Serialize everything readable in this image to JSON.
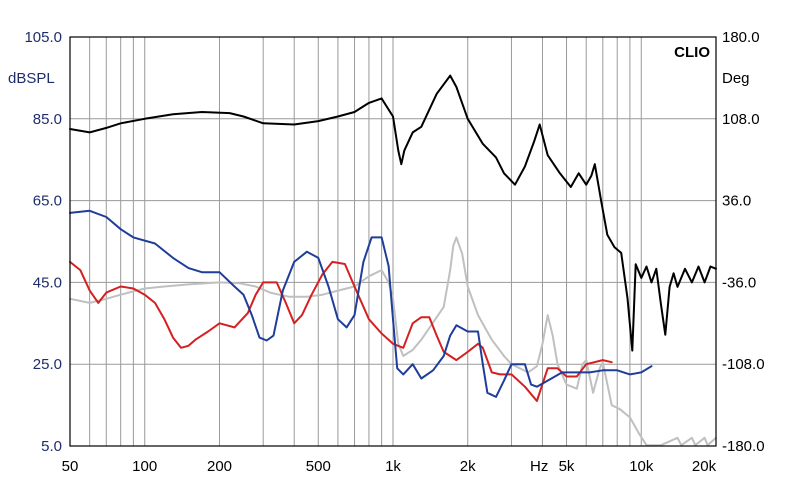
{
  "chart_data": {
    "type": "line",
    "brand": "CLIO",
    "x_scale": "log",
    "xlim": [
      50,
      20000
    ],
    "x_ticks": [
      50,
      100,
      200,
      500,
      1000,
      2000,
      5000,
      10000,
      20000
    ],
    "x_tick_labels": [
      "50",
      "100",
      "200",
      "500",
      "1k",
      "2k",
      "5k",
      "10k",
      "20k"
    ],
    "x_unit": "Hz",
    "y_left": {
      "unit": "dBSPL",
      "lim": [
        5,
        105
      ],
      "ticks": [
        5,
        25,
        45,
        65,
        85,
        105
      ],
      "tick_labels": [
        "5.0",
        "25.0",
        "45.0",
        "65.0",
        "85.0",
        "105.0"
      ]
    },
    "y_right": {
      "unit": "Deg",
      "lim": [
        -180,
        180
      ],
      "ticks": [
        -180,
        -108,
        -36,
        36,
        108,
        180
      ],
      "tick_labels": [
        "-180.0",
        "-108.0",
        "-36.0",
        "36.0",
        "108.0",
        "180.0"
      ]
    },
    "grid": true,
    "colors": {
      "axis_text_left": "#1f2d6b",
      "grid": "#9a9a9a",
      "frame": "#000000"
    },
    "series": [
      {
        "axis": "left",
        "color": "#1f3d99",
        "points": [
          [
            50,
            62
          ],
          [
            60,
            62.5
          ],
          [
            70,
            61
          ],
          [
            80,
            58
          ],
          [
            90,
            56
          ],
          [
            110,
            54.5
          ],
          [
            130,
            51
          ],
          [
            150,
            48.5
          ],
          [
            170,
            47.5
          ],
          [
            200,
            47.5
          ],
          [
            230,
            44
          ],
          [
            250,
            42
          ],
          [
            270,
            37
          ],
          [
            290,
            31.5
          ],
          [
            310,
            30.8
          ],
          [
            330,
            32
          ],
          [
            360,
            43
          ],
          [
            400,
            50
          ],
          [
            450,
            52.5
          ],
          [
            500,
            51
          ],
          [
            550,
            44
          ],
          [
            600,
            36
          ],
          [
            650,
            34
          ],
          [
            700,
            37
          ],
          [
            760,
            50
          ],
          [
            820,
            56
          ],
          [
            900,
            56
          ],
          [
            960,
            49
          ],
          [
            1000,
            36
          ],
          [
            1040,
            24
          ],
          [
            1100,
            22.5
          ],
          [
            1200,
            25
          ],
          [
            1300,
            21.5
          ],
          [
            1450,
            23.5
          ],
          [
            1600,
            27
          ],
          [
            1700,
            32
          ],
          [
            1800,
            34.5
          ],
          [
            2000,
            33
          ],
          [
            2200,
            33
          ],
          [
            2300,
            25
          ],
          [
            2400,
            18
          ],
          [
            2600,
            17
          ],
          [
            2800,
            21
          ],
          [
            3000,
            25
          ],
          [
            3400,
            25
          ],
          [
            3600,
            20
          ],
          [
            3800,
            19.5
          ],
          [
            4200,
            21
          ],
          [
            4800,
            23
          ],
          [
            5500,
            23
          ],
          [
            6200,
            23
          ],
          [
            7000,
            23.5
          ],
          [
            8000,
            23.5
          ],
          [
            9000,
            22.5
          ],
          [
            10000,
            23
          ],
          [
            11000,
            24.5
          ]
        ]
      },
      {
        "axis": "left",
        "color": "#d42020",
        "points": [
          [
            50,
            50
          ],
          [
            55,
            48
          ],
          [
            60,
            43
          ],
          [
            65,
            40
          ],
          [
            70,
            42.5
          ],
          [
            80,
            44
          ],
          [
            90,
            43.5
          ],
          [
            100,
            42
          ],
          [
            110,
            40
          ],
          [
            120,
            36
          ],
          [
            130,
            31.5
          ],
          [
            140,
            29
          ],
          [
            150,
            29.5
          ],
          [
            160,
            31
          ],
          [
            180,
            33
          ],
          [
            200,
            35
          ],
          [
            230,
            34
          ],
          [
            260,
            37.5
          ],
          [
            280,
            42
          ],
          [
            300,
            45
          ],
          [
            340,
            45
          ],
          [
            370,
            40
          ],
          [
            400,
            35
          ],
          [
            430,
            37
          ],
          [
            470,
            42
          ],
          [
            520,
            47
          ],
          [
            570,
            50
          ],
          [
            640,
            49.5
          ],
          [
            700,
            44
          ],
          [
            800,
            36
          ],
          [
            900,
            32.5
          ],
          [
            1000,
            30
          ],
          [
            1100,
            29
          ],
          [
            1200,
            35
          ],
          [
            1300,
            36.5
          ],
          [
            1400,
            36.5
          ],
          [
            1500,
            32
          ],
          [
            1600,
            28
          ],
          [
            1800,
            26
          ],
          [
            2000,
            28
          ],
          [
            2200,
            30
          ],
          [
            2300,
            29
          ],
          [
            2500,
            23
          ],
          [
            2700,
            22.5
          ],
          [
            3000,
            22.5
          ],
          [
            3400,
            19.5
          ],
          [
            3800,
            16
          ],
          [
            4200,
            24
          ],
          [
            4600,
            24
          ],
          [
            5000,
            22
          ],
          [
            5500,
            22
          ],
          [
            6000,
            25
          ],
          [
            7000,
            26
          ],
          [
            7600,
            25.5
          ]
        ]
      },
      {
        "axis": "left",
        "color": "#c0c0c0",
        "points": [
          [
            50,
            41
          ],
          [
            60,
            40
          ],
          [
            70,
            41
          ],
          [
            80,
            42
          ],
          [
            100,
            43.5
          ],
          [
            120,
            44
          ],
          [
            150,
            44.5
          ],
          [
            200,
            45
          ],
          [
            240,
            44.8
          ],
          [
            280,
            44
          ],
          [
            320,
            42.5
          ],
          [
            380,
            41.5
          ],
          [
            450,
            41.5
          ],
          [
            520,
            42
          ],
          [
            600,
            43
          ],
          [
            700,
            44
          ],
          [
            800,
            46.5
          ],
          [
            900,
            48
          ],
          [
            960,
            45
          ],
          [
            1000,
            41
          ],
          [
            1050,
            30
          ],
          [
            1100,
            27
          ],
          [
            1200,
            28.5
          ],
          [
            1300,
            31
          ],
          [
            1500,
            36.5
          ],
          [
            1600,
            39
          ],
          [
            1700,
            48
          ],
          [
            1750,
            54
          ],
          [
            1800,
            56
          ],
          [
            1900,
            52
          ],
          [
            2000,
            44
          ],
          [
            2200,
            37
          ],
          [
            2500,
            31
          ],
          [
            2800,
            27
          ],
          [
            3000,
            25
          ],
          [
            3500,
            23
          ],
          [
            3800,
            24.5
          ],
          [
            4000,
            30
          ],
          [
            4200,
            37
          ],
          [
            4400,
            32
          ],
          [
            4600,
            25
          ],
          [
            5000,
            20
          ],
          [
            5500,
            19
          ],
          [
            5800,
            25
          ],
          [
            6000,
            26
          ],
          [
            6400,
            18
          ],
          [
            6800,
            24
          ],
          [
            7000,
            25.5
          ],
          [
            7600,
            15
          ],
          [
            8200,
            14
          ],
          [
            9000,
            12
          ],
          [
            9800,
            8
          ],
          [
            10500,
            5.2
          ],
          [
            12000,
            5.2
          ],
          [
            14000,
            7
          ],
          [
            14500,
            5.2
          ],
          [
            16000,
            7
          ],
          [
            16500,
            5.2
          ],
          [
            18000,
            7
          ],
          [
            18500,
            5.2
          ],
          [
            20000,
            7
          ]
        ]
      },
      {
        "axis": "right",
        "color": "#000000",
        "points": [
          [
            50,
            99
          ],
          [
            60,
            96
          ],
          [
            70,
            100
          ],
          [
            80,
            104
          ],
          [
            100,
            108
          ],
          [
            130,
            112
          ],
          [
            170,
            114
          ],
          [
            220,
            113
          ],
          [
            250,
            110
          ],
          [
            300,
            104
          ],
          [
            400,
            103
          ],
          [
            500,
            106
          ],
          [
            600,
            110
          ],
          [
            700,
            114
          ],
          [
            800,
            122
          ],
          [
            900,
            126
          ],
          [
            1000,
            110
          ],
          [
            1050,
            80
          ],
          [
            1080,
            68
          ],
          [
            1110,
            80
          ],
          [
            1200,
            96
          ],
          [
            1300,
            101
          ],
          [
            1500,
            130
          ],
          [
            1700,
            146
          ],
          [
            1800,
            136
          ],
          [
            2000,
            108
          ],
          [
            2300,
            86
          ],
          [
            2600,
            74
          ],
          [
            2800,
            60
          ],
          [
            3100,
            50
          ],
          [
            3400,
            66
          ],
          [
            3700,
            88
          ],
          [
            3900,
            103
          ],
          [
            4200,
            76
          ],
          [
            4700,
            60
          ],
          [
            5200,
            48
          ],
          [
            5600,
            60
          ],
          [
            6000,
            50
          ],
          [
            6300,
            58
          ],
          [
            6500,
            68
          ],
          [
            6900,
            35
          ],
          [
            7300,
            6
          ],
          [
            7800,
            -5
          ],
          [
            8300,
            -10
          ],
          [
            8800,
            -50
          ],
          [
            9200,
            -96
          ],
          [
            9500,
            -20
          ],
          [
            10000,
            -32
          ],
          [
            10500,
            -22
          ],
          [
            11000,
            -36
          ],
          [
            11500,
            -24
          ],
          [
            12000,
            -55
          ],
          [
            12500,
            -82
          ],
          [
            13000,
            -40
          ],
          [
            13500,
            -28
          ],
          [
            14000,
            -40
          ],
          [
            15000,
            -24
          ],
          [
            16000,
            -36
          ],
          [
            17000,
            -22
          ],
          [
            18000,
            -36
          ],
          [
            19000,
            -22
          ],
          [
            20000,
            -24
          ]
        ]
      }
    ]
  }
}
